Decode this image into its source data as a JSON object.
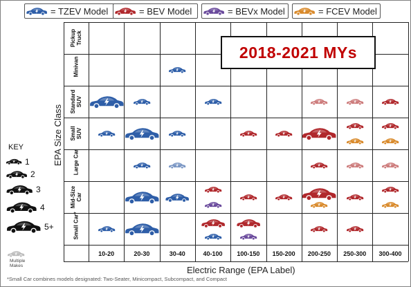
{
  "legend": [
    {
      "label": "= TZEV Model",
      "color": "#2e5ea8"
    },
    {
      "label": "= BEV Model",
      "color": "#b0282c"
    },
    {
      "label": "= BEVx Model",
      "color": "#6a4a9c"
    },
    {
      "label": "= FCEV Model",
      "color": "#d98a2b"
    }
  ],
  "title": "2018-2021 MYs",
  "y_axis_label": "EPA Size Class",
  "x_axis_label": "Electric Range (EPA Label)",
  "rows": [
    "Pickup\nTruck",
    "Minivan",
    "Standard\nSUV",
    "Small\nSUV",
    "Large Car",
    "Mid-Size\nCar",
    "Small Car*"
  ],
  "columns": [
    "10-20",
    "20-30",
    "30-40",
    "40-100",
    "100-150",
    "150-200",
    "200-250",
    "250-300",
    "300-400"
  ],
  "key": {
    "title": "KEY",
    "items": [
      "1",
      "2",
      "3",
      "4",
      "5+"
    ],
    "multiple_label": "Multiple\nMakes"
  },
  "footnote": "*Small Car combines models designated: Two-Seater, Minicompact, Subcompact, and Compact",
  "colors": {
    "tzev": "#2e5ea8",
    "tzev_multi": "#7b97c4",
    "bev": "#b0282c",
    "bev_multi": "#cd7c7c",
    "bevx": "#6a4a9c",
    "fcev": "#d98a2b",
    "key": "#111111",
    "key_multi": "#bdbdbd"
  },
  "cells": [
    {
      "row": 1,
      "col": 2,
      "cars": [
        {
          "type": "tzev",
          "size": 1
        }
      ]
    },
    {
      "row": 2,
      "col": 0,
      "cars": [
        {
          "type": "tzev",
          "size": 3
        }
      ]
    },
    {
      "row": 2,
      "col": 1,
      "cars": [
        {
          "type": "tzev",
          "size": 1
        }
      ]
    },
    {
      "row": 2,
      "col": 3,
      "cars": [
        {
          "type": "tzev",
          "size": 1
        }
      ]
    },
    {
      "row": 2,
      "col": 6,
      "cars": [
        {
          "type": "bev_multi",
          "size": 1
        }
      ]
    },
    {
      "row": 2,
      "col": 7,
      "cars": [
        {
          "type": "bev_multi",
          "size": 1
        }
      ]
    },
    {
      "row": 2,
      "col": 8,
      "cars": [
        {
          "type": "bev",
          "size": 1
        }
      ]
    },
    {
      "row": 3,
      "col": 0,
      "cars": [
        {
          "type": "tzev",
          "size": 1
        }
      ]
    },
    {
      "row": 3,
      "col": 1,
      "cars": [
        {
          "type": "tzev",
          "size": 3
        }
      ]
    },
    {
      "row": 3,
      "col": 2,
      "cars": [
        {
          "type": "tzev",
          "size": 1
        }
      ]
    },
    {
      "row": 3,
      "col": 4,
      "cars": [
        {
          "type": "bev",
          "size": 1
        }
      ]
    },
    {
      "row": 3,
      "col": 5,
      "cars": [
        {
          "type": "bev",
          "size": 1
        }
      ]
    },
    {
      "row": 3,
      "col": 6,
      "cars": [
        {
          "type": "bev",
          "size": 3
        }
      ]
    },
    {
      "row": 3,
      "col": 7,
      "cars": [
        {
          "type": "bev",
          "size": 1
        },
        {
          "type": "fcev",
          "size": 1
        }
      ]
    },
    {
      "row": 3,
      "col": 8,
      "cars": [
        {
          "type": "bev",
          "size": 1
        },
        {
          "type": "fcev",
          "size": 1
        }
      ]
    },
    {
      "row": 4,
      "col": 1,
      "cars": [
        {
          "type": "tzev",
          "size": 1
        }
      ]
    },
    {
      "row": 4,
      "col": 2,
      "cars": [
        {
          "type": "tzev_multi",
          "size": 1
        }
      ]
    },
    {
      "row": 4,
      "col": 6,
      "cars": [
        {
          "type": "bev",
          "size": 1
        }
      ]
    },
    {
      "row": 4,
      "col": 7,
      "cars": [
        {
          "type": "bev_multi",
          "size": 1
        }
      ]
    },
    {
      "row": 4,
      "col": 8,
      "cars": [
        {
          "type": "bev_multi",
          "size": 1
        }
      ]
    },
    {
      "row": 5,
      "col": 1,
      "cars": [
        {
          "type": "tzev",
          "size": 3
        }
      ]
    },
    {
      "row": 5,
      "col": 2,
      "cars": [
        {
          "type": "tzev",
          "size": 2
        }
      ]
    },
    {
      "row": 5,
      "col": 3,
      "cars": [
        {
          "type": "bev",
          "size": 1
        },
        {
          "type": "bevx",
          "size": 1
        }
      ]
    },
    {
      "row": 5,
      "col": 4,
      "cars": [
        {
          "type": "bev",
          "size": 1
        }
      ]
    },
    {
      "row": 5,
      "col": 5,
      "cars": [
        {
          "type": "bev",
          "size": 1
        }
      ]
    },
    {
      "row": 5,
      "col": 6,
      "cars": [
        {
          "type": "bev",
          "size": 3
        },
        {
          "type": "fcev",
          "size": 1
        }
      ]
    },
    {
      "row": 5,
      "col": 7,
      "cars": [
        {
          "type": "bev",
          "size": 1
        }
      ]
    },
    {
      "row": 5,
      "col": 8,
      "cars": [
        {
          "type": "bev",
          "size": 1
        },
        {
          "type": "fcev",
          "size": 1
        }
      ]
    },
    {
      "row": 6,
      "col": 0,
      "cars": [
        {
          "type": "tzev",
          "size": 1
        }
      ]
    },
    {
      "row": 6,
      "col": 1,
      "cars": [
        {
          "type": "tzev",
          "size": 3
        }
      ]
    },
    {
      "row": 6,
      "col": 3,
      "cars": [
        {
          "type": "bev",
          "size": 2
        },
        {
          "type": "tzev",
          "size": 1
        }
      ]
    },
    {
      "row": 6,
      "col": 4,
      "cars": [
        {
          "type": "bev",
          "size": 2
        },
        {
          "type": "bevx",
          "size": 1
        }
      ]
    },
    {
      "row": 6,
      "col": 6,
      "cars": [
        {
          "type": "bev",
          "size": 1
        }
      ]
    },
    {
      "row": 6,
      "col": 7,
      "cars": [
        {
          "type": "bev",
          "size": 1
        }
      ]
    }
  ]
}
